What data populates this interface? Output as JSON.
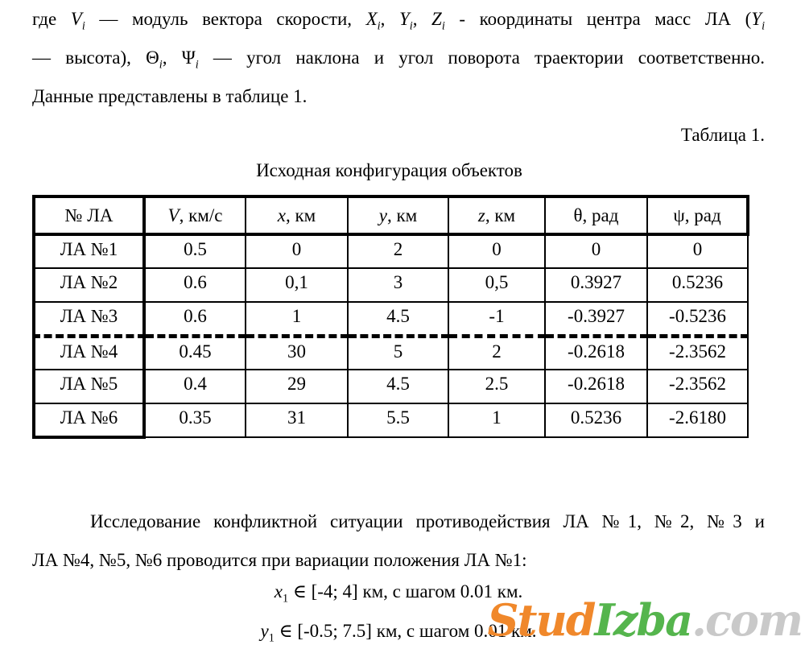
{
  "intro": {
    "line1": [
      {
        "t": "где "
      },
      {
        "t": "V",
        "i": true
      },
      {
        "t": "i",
        "i": true,
        "sub": true
      },
      {
        "t": " — модуль вектора скорости, "
      },
      {
        "t": "X",
        "i": true
      },
      {
        "t": "i",
        "i": true,
        "sub": true
      },
      {
        "t": ", "
      },
      {
        "t": "Y",
        "i": true
      },
      {
        "t": "i",
        "i": true,
        "sub": true
      },
      {
        "t": ", "
      },
      {
        "t": "Z",
        "i": true
      },
      {
        "t": "i",
        "i": true,
        "sub": true
      },
      {
        "t": " - координаты центра масс ЛА ("
      },
      {
        "t": "Y",
        "i": true
      },
      {
        "t": "i",
        "i": true,
        "sub": true
      }
    ],
    "line2": [
      {
        "t": "— высота), "
      },
      {
        "t": "Θ"
      },
      {
        "t": "i",
        "i": true,
        "sub": true
      },
      {
        "t": ", "
      },
      {
        "t": "Ψ"
      },
      {
        "t": "i",
        "i": true,
        "sub": true
      },
      {
        "t": " — угол наклона и угол поворота траектории соответственно."
      }
    ],
    "line3": "Данные представлены в таблице 1."
  },
  "table": {
    "caption": "Таблица 1.",
    "title": "Исходная конфигурация объектов",
    "headers": [
      [
        {
          "t": "№ ЛА"
        }
      ],
      [
        {
          "t": "V",
          "i": true
        },
        {
          "t": ", км/с"
        }
      ],
      [
        {
          "t": "x",
          "i": true
        },
        {
          "t": ", км"
        }
      ],
      [
        {
          "t": "y",
          "i": true
        },
        {
          "t": ", км"
        }
      ],
      [
        {
          "t": "z",
          "i": true
        },
        {
          "t": ", км"
        }
      ],
      [
        {
          "t": "θ"
        },
        {
          "t": ", рад"
        }
      ],
      [
        {
          "t": "ψ"
        },
        {
          "t": ", рад"
        }
      ]
    ],
    "rows": [
      {
        "label": "ЛА №1",
        "values": [
          "0.5",
          "0",
          "2",
          "0",
          "0",
          "0"
        ]
      },
      {
        "label": "ЛА №2",
        "values": [
          "0.6",
          "0,1",
          "3",
          "0,5",
          "0.3927",
          "0.5236"
        ]
      },
      {
        "label": "ЛА №3",
        "values": [
          "0.6",
          "1",
          "4.5",
          "-1",
          "-0.3927",
          "-0.5236"
        ]
      },
      {
        "label": "ЛА №4",
        "values": [
          "0.45",
          "30",
          "5",
          "2",
          "-0.2618",
          "-2.3562"
        ]
      },
      {
        "label": "ЛА №5",
        "values": [
          "0.4",
          "29",
          "4.5",
          "2.5",
          "-0.2618",
          "-2.3562"
        ]
      },
      {
        "label": "ЛА №6",
        "values": [
          "0.35",
          "31",
          "5.5",
          "1",
          "0.5236",
          "-2.6180"
        ]
      }
    ]
  },
  "research": {
    "line1": "Исследование конфликтной ситуации противодействия ЛА №1, №2, №3 и",
    "line2": "ЛА №4, №5, №6 проводится при вариации положения ЛА №1:"
  },
  "formulas": {
    "x_range": [
      {
        "t": "x",
        "i": true
      },
      {
        "t": "1",
        "sub": true
      },
      {
        "t": " ∈ [-4; 4] км, с шагом 0.01 км."
      }
    ],
    "y_range": [
      {
        "t": "y",
        "i": true
      },
      {
        "t": "1",
        "sub": true
      },
      {
        "t": " ∈ [-0.5; 7.5] км, с шагом 0.01 км."
      }
    ]
  },
  "watermark": {
    "part_stud": "Stud",
    "color_stud": "#F0882B",
    "part_izba": "Izba",
    "color_izba": "#55B54D",
    "part_com": ".com",
    "color_com": "#C9C9C9"
  }
}
